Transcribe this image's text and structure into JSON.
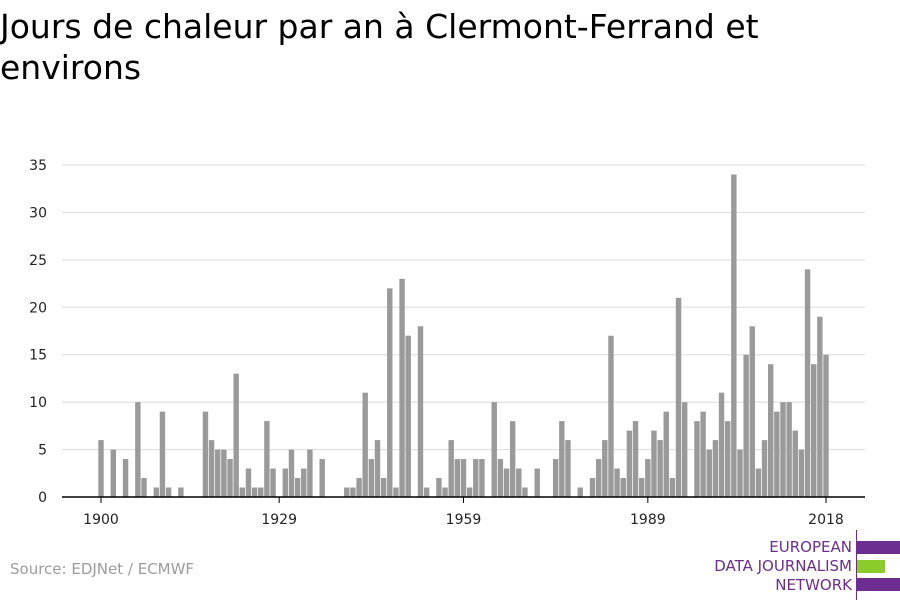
{
  "title": "Jours de chaleur par an à Clermont-Ferrand et environs",
  "source": "Source: EDJNet / ECMWF",
  "logo": {
    "lines": [
      "EUROPEAN",
      "DATA JOURNALISM",
      "NETWORK"
    ],
    "colors": {
      "purple": "#6c2d91",
      "green": "#8ccc2a"
    }
  },
  "colors": {
    "bar": "#9a9a9a",
    "grid": "#dddddd",
    "axis": "#000000"
  },
  "chart_data": {
    "type": "bar",
    "title": "Jours de chaleur par an à Clermont-Ferrand et environs",
    "xlabel": "",
    "ylabel": "",
    "x_start": 1900,
    "x_end": 2018,
    "x_ticks": [
      1900,
      1929,
      1959,
      1989,
      2018
    ],
    "y_ticks": [
      0,
      5,
      10,
      15,
      20,
      25,
      30,
      35
    ],
    "ylim": [
      0,
      35
    ],
    "grid": true,
    "years": [
      1900,
      1901,
      1902,
      1903,
      1904,
      1905,
      1906,
      1907,
      1908,
      1909,
      1910,
      1911,
      1912,
      1913,
      1914,
      1915,
      1916,
      1917,
      1918,
      1919,
      1920,
      1921,
      1922,
      1923,
      1924,
      1925,
      1926,
      1927,
      1928,
      1929,
      1930,
      1931,
      1932,
      1933,
      1934,
      1935,
      1936,
      1937,
      1938,
      1939,
      1940,
      1941,
      1942,
      1943,
      1944,
      1945,
      1946,
      1947,
      1948,
      1949,
      1950,
      1951,
      1952,
      1953,
      1954,
      1955,
      1956,
      1957,
      1958,
      1959,
      1960,
      1961,
      1962,
      1963,
      1964,
      1965,
      1966,
      1967,
      1968,
      1969,
      1970,
      1971,
      1972,
      1973,
      1974,
      1975,
      1976,
      1977,
      1978,
      1979,
      1980,
      1981,
      1982,
      1983,
      1984,
      1985,
      1986,
      1987,
      1988,
      1989,
      1990,
      1991,
      1992,
      1993,
      1994,
      1995,
      1996,
      1997,
      1998,
      1999,
      2000,
      2001,
      2002,
      2003,
      2004,
      2005,
      2006,
      2007,
      2008,
      2009,
      2010,
      2011,
      2012,
      2013,
      2014,
      2015,
      2016,
      2017,
      2018
    ],
    "values": [
      6,
      0,
      5,
      0,
      4,
      0,
      10,
      2,
      0,
      1,
      9,
      1,
      0,
      1,
      0,
      0,
      0,
      9,
      6,
      5,
      5,
      4,
      13,
      1,
      3,
      1,
      1,
      8,
      3,
      0,
      3,
      5,
      2,
      3,
      5,
      0,
      4,
      0,
      0,
      0,
      1,
      1,
      2,
      11,
      4,
      6,
      2,
      22,
      1,
      23,
      17,
      0,
      18,
      1,
      0,
      2,
      1,
      6,
      4,
      4,
      1,
      4,
      4,
      0,
      10,
      4,
      3,
      8,
      3,
      1,
      0,
      3,
      0,
      0,
      4,
      8,
      6,
      0,
      1,
      0,
      2,
      4,
      6,
      17,
      3,
      2,
      7,
      8,
      2,
      4,
      7,
      6,
      9,
      2,
      21,
      10,
      0,
      8,
      9,
      5,
      6,
      11,
      8,
      34,
      5,
      15,
      18,
      3,
      6,
      14,
      9,
      10,
      10,
      7,
      5,
      24,
      14,
      19,
      15
    ]
  }
}
